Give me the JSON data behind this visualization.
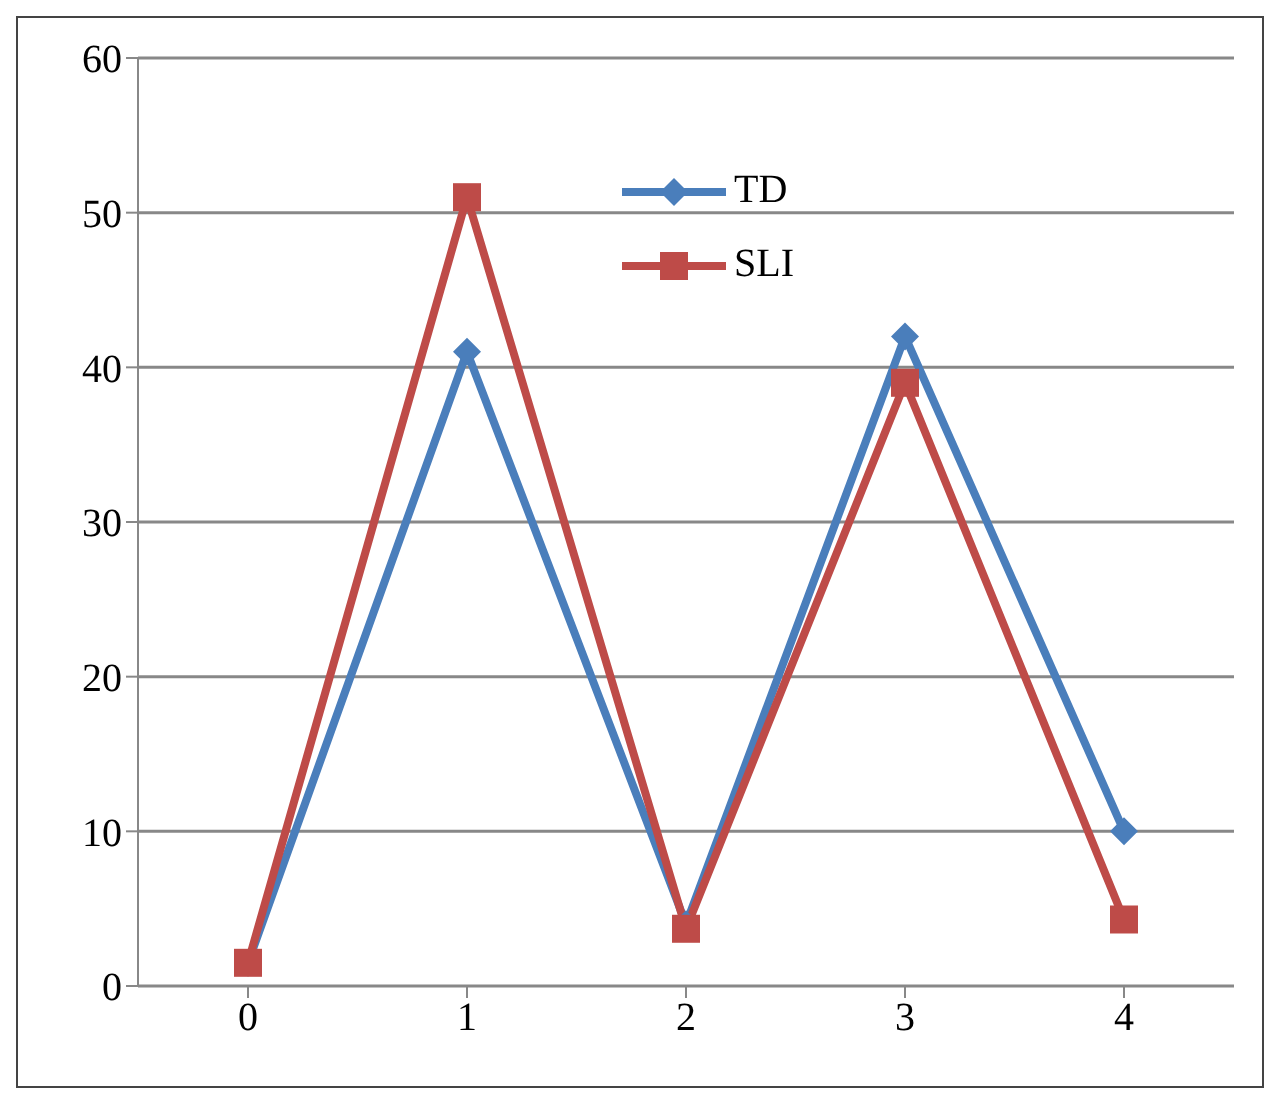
{
  "chart_data": {
    "type": "line",
    "categories": [
      "0",
      "1",
      "2",
      "3",
      "4"
    ],
    "series": [
      {
        "name": "TD",
        "color": "#4a7ebb",
        "marker": "diamond",
        "values": [
          1.5,
          41,
          4,
          42,
          10
        ]
      },
      {
        "name": "SLI",
        "color": "#be4b48",
        "marker": "square",
        "values": [
          1.5,
          51,
          3.7,
          39,
          4.3
        ]
      }
    ],
    "ylim": [
      0,
      60
    ],
    "yticks": [
      0,
      10,
      20,
      30,
      40,
      50,
      60
    ],
    "grid": "y",
    "legend": "top"
  }
}
